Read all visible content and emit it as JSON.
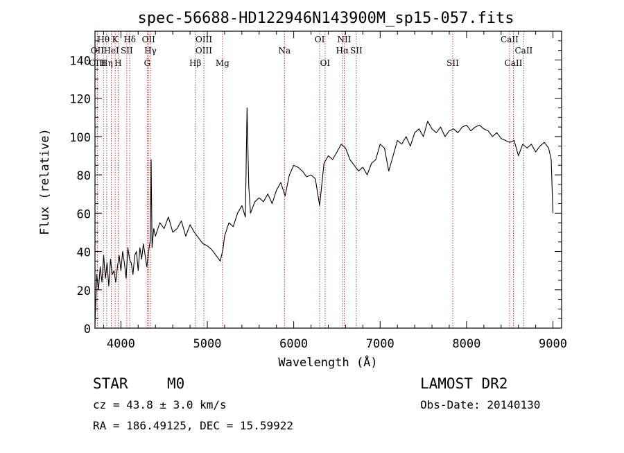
{
  "chart_data": {
    "type": "line",
    "title": "spec-56688-HD122946N143900M_sp15-057.fits",
    "xlabel": "Wavelength (Å)",
    "ylabel": "Flux (relative)",
    "xlim": [
      3700,
      9100
    ],
    "ylim": [
      0,
      155
    ],
    "x_ticks": [
      4000,
      5000,
      6000,
      7000,
      8000,
      9000
    ],
    "y_ticks": [
      0,
      20,
      40,
      60,
      80,
      100,
      120,
      140
    ],
    "grid": false,
    "legend": "none",
    "colors": {
      "spectrum": "#000000",
      "lines": "#b22222"
    },
    "series": [
      {
        "x": [
          3700,
          3720,
          3740,
          3760,
          3780,
          3800,
          3820,
          3840,
          3860,
          3880,
          3900,
          3920,
          3940,
          3960,
          3980,
          4000,
          4020,
          4040,
          4060,
          4080,
          4100,
          4120,
          4140,
          4160,
          4180,
          4200,
          4220,
          4240,
          4260,
          4280,
          4300,
          4320,
          4340,
          4350,
          4360,
          4380,
          4400,
          4450,
          4500,
          4550,
          4600,
          4650,
          4700,
          4750,
          4800,
          4850,
          4900,
          4950,
          5000,
          5050,
          5100,
          5150,
          5180,
          5200,
          5250,
          5300,
          5350,
          5400,
          5440,
          5460,
          5480,
          5500,
          5550,
          5600,
          5650,
          5700,
          5750,
          5800,
          5850,
          5900,
          5950,
          6000,
          6050,
          6100,
          6150,
          6200,
          6250,
          6300,
          6350,
          6400,
          6450,
          6500,
          6550,
          6600,
          6650,
          6700,
          6750,
          6800,
          6850,
          6900,
          6950,
          7000,
          7050,
          7100,
          7150,
          7200,
          7250,
          7300,
          7350,
          7400,
          7450,
          7500,
          7550,
          7600,
          7650,
          7700,
          7750,
          7800,
          7850,
          7900,
          7950,
          8000,
          8050,
          8100,
          8150,
          8200,
          8250,
          8300,
          8350,
          8400,
          8450,
          8500,
          8550,
          8600,
          8650,
          8700,
          8750,
          8800,
          8850,
          8900,
          8950,
          8980,
          9000
        ],
        "y": [
          2,
          28,
          20,
          32,
          24,
          38,
          26,
          34,
          22,
          36,
          28,
          30,
          24,
          32,
          38,
          30,
          40,
          34,
          26,
          42,
          36,
          34,
          28,
          38,
          40,
          30,
          42,
          36,
          44,
          38,
          32,
          40,
          46,
          88,
          42,
          52,
          48,
          55,
          52,
          58,
          50,
          52,
          56,
          48,
          54,
          50,
          47,
          44,
          43,
          41,
          38,
          35,
          41,
          48,
          55,
          53,
          60,
          64,
          58,
          115,
          74,
          60,
          66,
          68,
          66,
          70,
          65,
          72,
          76,
          69,
          80,
          85,
          84,
          82,
          79,
          80,
          78,
          64,
          86,
          90,
          88,
          92,
          96,
          94,
          88,
          85,
          82,
          84,
          80,
          86,
          88,
          96,
          94,
          82,
          90,
          98,
          96,
          100,
          95,
          102,
          104,
          100,
          108,
          104,
          102,
          105,
          100,
          103,
          104,
          102,
          105,
          106,
          103,
          105,
          106,
          104,
          103,
          100,
          102,
          99,
          98,
          97,
          98,
          90,
          96,
          94,
          96,
          92,
          95,
          97,
          94,
          88,
          60
        ]
      }
    ],
    "line_labels": [
      {
        "label": "Hθ",
        "x": 3798,
        "row": 1
      },
      {
        "label": "K",
        "x": 3934,
        "row": 1
      },
      {
        "label": "Hδ",
        "x": 4102,
        "row": 1
      },
      {
        "label": "OII",
        "x": 4320,
        "row": 1
      },
      {
        "label": "OIII",
        "x": 4960,
        "row": 1
      },
      {
        "label": "OI",
        "x": 6300,
        "row": 1
      },
      {
        "label": "NII",
        "x": 6584,
        "row": 1
      },
      {
        "label": "CaII",
        "x": 8498,
        "row": 1
      },
      {
        "label": "OII",
        "x": 3727,
        "row": 2
      },
      {
        "label": "HeI",
        "x": 3889,
        "row": 2
      },
      {
        "label": "SII",
        "x": 4068,
        "row": 2
      },
      {
        "label": "Hγ",
        "x": 4341,
        "row": 2
      },
      {
        "label": "OIII",
        "x": 4959,
        "row": 2
      },
      {
        "label": "Na",
        "x": 5893,
        "row": 2
      },
      {
        "label": "Hα",
        "x": 6563,
        "row": 2
      },
      {
        "label": "SII",
        "x": 6724,
        "row": 2
      },
      {
        "label": "CaII",
        "x": 8662,
        "row": 2
      },
      {
        "label": "OIII",
        "x": 3727,
        "row": 3
      },
      {
        "label": "Hη",
        "x": 3835,
        "row": 3
      },
      {
        "label": "H",
        "x": 3968,
        "row": 3
      },
      {
        "label": "G",
        "x": 4305,
        "row": 3
      },
      {
        "label": "Hβ",
        "x": 4861,
        "row": 3
      },
      {
        "label": "Mg",
        "x": 5175,
        "row": 3
      },
      {
        "label": "OI",
        "x": 6363,
        "row": 3
      },
      {
        "label": "SII",
        "x": 7840,
        "row": 3
      },
      {
        "label": "CaII",
        "x": 8542,
        "row": 3
      }
    ]
  },
  "info": {
    "object_class": "STAR",
    "subclass": "M0",
    "survey": "LAMOST DR2",
    "cz": "cz = 43.8 ± 3.0 km/s",
    "obs_date": "Obs-Date: 20140130",
    "coords": "RA = 186.49125, DEC =  15.59922"
  }
}
